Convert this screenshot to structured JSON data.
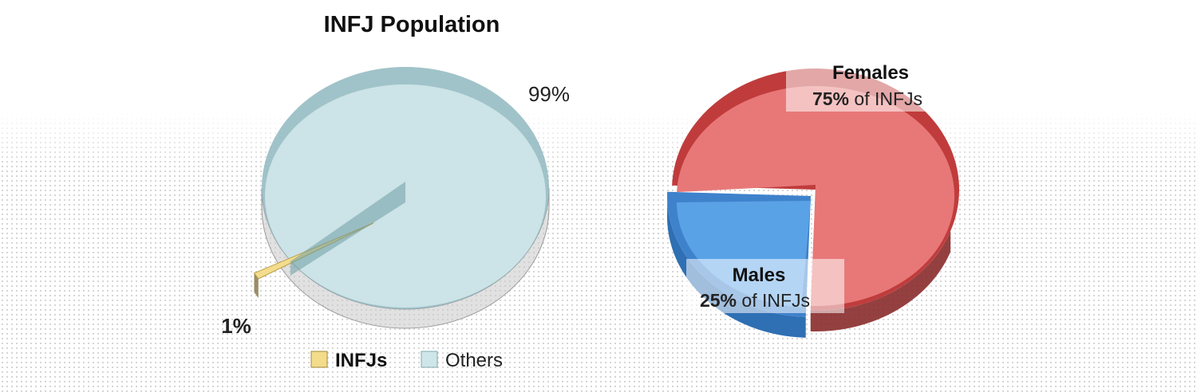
{
  "chart_data": [
    {
      "type": "pie",
      "title": "INFJ Population",
      "categories": [
        "INFJs",
        "Others"
      ],
      "values": [
        1,
        99
      ],
      "data_labels": [
        "1%",
        "99%"
      ],
      "legend": {
        "placement": "bottom",
        "entries": [
          {
            "label": "INFJs",
            "color": "#f3dc8c"
          },
          {
            "label": "Others",
            "color": "#cfe6e9"
          }
        ]
      },
      "colors": {
        "INFJs": "#f3dc8c",
        "Others": "#cfe6e9",
        "others_rim": "#8fb9bf"
      },
      "style": "3d"
    },
    {
      "type": "pie",
      "title": "",
      "categories": [
        "Females",
        "Males"
      ],
      "values": [
        75,
        25
      ],
      "labels": [
        {
          "name": "Females",
          "percent": "75%",
          "suffix": "of INFJs"
        },
        {
          "name": "Males",
          "percent": "25%",
          "suffix": "of INFJs"
        }
      ],
      "colors": {
        "Females": "#e87878",
        "Males": "#5aa2e6",
        "females_rim": "#c03c3c",
        "males_rim": "#3f82cc"
      },
      "style": "3d"
    }
  ]
}
